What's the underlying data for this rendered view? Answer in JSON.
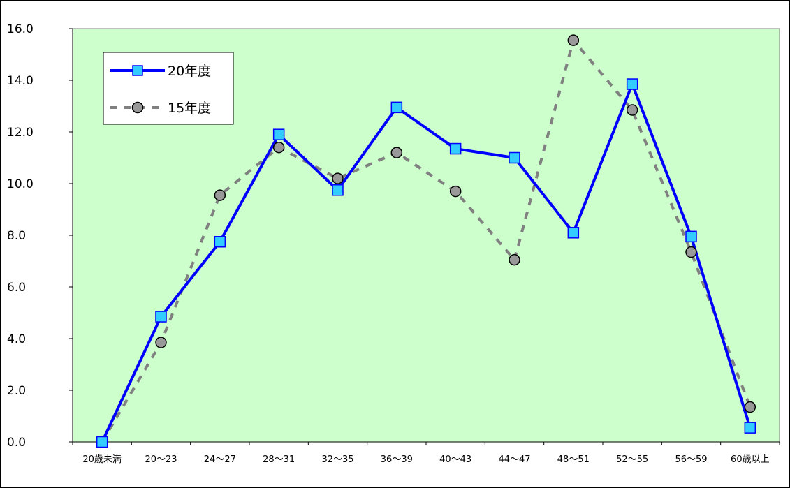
{
  "chart_data": {
    "type": "line",
    "categories": [
      "20歳未満",
      "20～23",
      "24～27",
      "28～31",
      "32～35",
      "36～39",
      "40～43",
      "44～47",
      "48～51",
      "52～55",
      "56～59",
      "60歳以上"
    ],
    "series": [
      {
        "name": "20年度",
        "values": [
          0.0,
          4.85,
          7.75,
          11.9,
          9.75,
          12.95,
          11.35,
          11.0,
          8.1,
          13.85,
          7.95,
          0.55
        ],
        "color": "#0000ff",
        "marker": "square",
        "marker_color": "#33ccff"
      },
      {
        "name": "15年度",
        "values": [
          0.0,
          3.85,
          9.55,
          11.4,
          10.2,
          11.2,
          9.7,
          7.05,
          15.55,
          12.85,
          7.35,
          1.35
        ],
        "color": "#808080",
        "marker": "circle",
        "marker_color": "#999999"
      }
    ],
    "yticks": [
      "0.0",
      "2.0",
      "4.0",
      "6.0",
      "8.0",
      "10.0",
      "12.0",
      "14.0",
      "16.0"
    ],
    "ylim": [
      0,
      16
    ],
    "plot_background": "#ccffcc",
    "legend_position": "top-left",
    "grid": false
  }
}
